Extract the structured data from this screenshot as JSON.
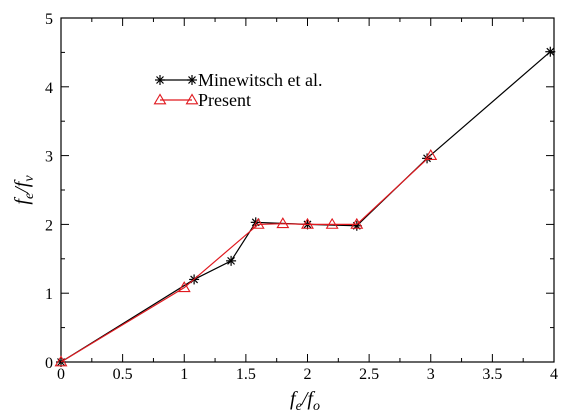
{
  "chart_data": {
    "type": "line",
    "xlabel": {
      "main": "f",
      "sub1": "e",
      "slash": "/f",
      "sub2": "o"
    },
    "ylabel": {
      "main": "f",
      "sub1": "e",
      "slash": "/f",
      "sub2": "v"
    },
    "xlim": [
      0,
      4
    ],
    "ylim": [
      0,
      5
    ],
    "x_ticks": [
      0,
      0.5,
      1,
      1.5,
      2,
      2.5,
      3,
      3.5,
      4
    ],
    "x_tick_labels": [
      "0",
      "0.5",
      "1",
      "1.5",
      "2",
      "2.5",
      "3",
      "3.5",
      "4"
    ],
    "y_ticks": [
      0,
      1,
      2,
      3,
      4,
      5
    ],
    "y_tick_labels": [
      "0",
      "1",
      "2",
      "3",
      "4",
      "5"
    ],
    "grid": false,
    "legend_position": "top-left",
    "series": [
      {
        "name": "Minewitsch et al.",
        "color": "#000000",
        "marker": "asterisk",
        "x": [
          0,
          1.08,
          1.38,
          1.58,
          2.0,
          2.4,
          2.97,
          3.97
        ],
        "y": [
          0,
          1.2,
          1.47,
          2.03,
          2.0,
          1.98,
          2.96,
          4.51
        ]
      },
      {
        "name": "Present",
        "color": "#e0191f",
        "marker": "triangle",
        "x": [
          0,
          1.0,
          1.6,
          1.8,
          2.0,
          2.2,
          2.4,
          3.0
        ],
        "y": [
          0,
          1.08,
          2.0,
          2.01,
          2.0,
          2.0,
          2.0,
          3.0
        ]
      }
    ]
  }
}
